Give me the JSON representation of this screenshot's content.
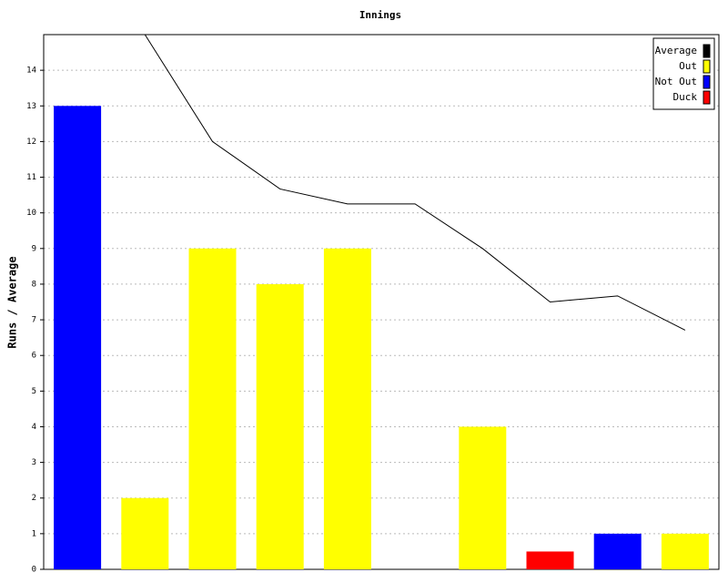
{
  "chart_data": {
    "type": "bar",
    "title": "Innings",
    "y_label": "Runs / Average",
    "categories": [
      null,
      null,
      null,
      null,
      null,
      null,
      null,
      null,
      null,
      null
    ],
    "series": [
      {
        "name": "Average",
        "color": "#000000",
        "kind": "line",
        "values": [
          null,
          15,
          12,
          10.67,
          10.25,
          10.25,
          9,
          7.5,
          7.67,
          6.71
        ]
      },
      {
        "name": "Out",
        "color": "#ffff00",
        "values": [
          null,
          2,
          9,
          8,
          9,
          null,
          4,
          null,
          null,
          1
        ]
      },
      {
        "name": "Not Out",
        "color": "#0000ff",
        "values": [
          13,
          null,
          null,
          null,
          null,
          null,
          null,
          null,
          1,
          null
        ]
      },
      {
        "name": "Duck",
        "color": "#ff0000",
        "values": [
          null,
          null,
          null,
          null,
          null,
          null,
          null,
          0.5,
          null,
          null
        ]
      }
    ],
    "ylim": [
      0,
      15
    ],
    "yticks": [
      0,
      1,
      2,
      3,
      4,
      5,
      6,
      7,
      8,
      9,
      10,
      11,
      12,
      13,
      14
    ],
    "grid": true,
    "legend": "top-right"
  }
}
